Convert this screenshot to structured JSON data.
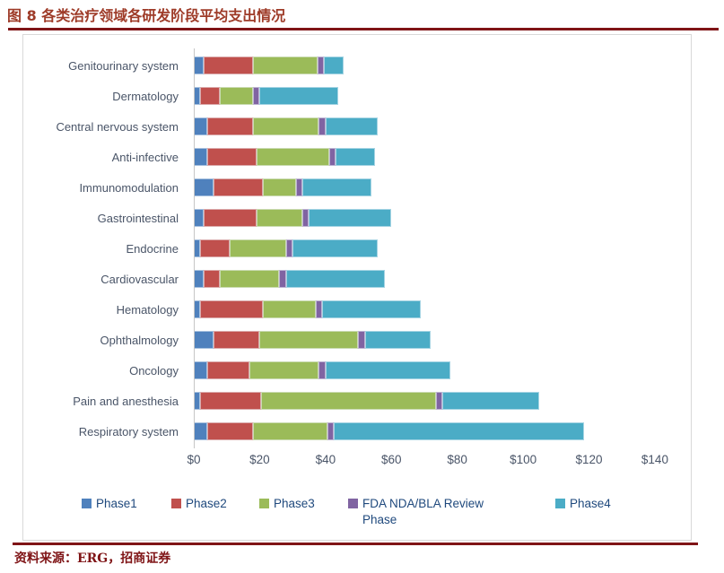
{
  "title": "图 8 各类治疗领域各研发阶段平均支出情况",
  "source": "资料来源：ERG，招商证券",
  "accent_colors": {
    "title_text": "#9e3b28",
    "rule": "#7f1416",
    "panel_border": "#d9d9d9",
    "axis_text": "#4a5568",
    "legend_text": "#1f497d"
  },
  "chart_data": {
    "type": "bar",
    "orientation": "horizontal",
    "stacked": true,
    "unit": "USD millions",
    "grid": false,
    "legend_position": "bottom",
    "xlim": [
      0,
      140
    ],
    "x_ticks": [
      "$0",
      "$20",
      "$40",
      "$60",
      "$80",
      "$100",
      "$120",
      "$140"
    ],
    "categories": [
      "Genitourinary system",
      "Dermatology",
      "Central nervous system",
      "Anti-infective",
      "Immunomodulation",
      "Gastrointestinal",
      "Endocrine",
      "Cardiovascular",
      "Hematology",
      "Ophthalmology",
      "Oncology",
      "Pain and anesthesia",
      "Respiratory system"
    ],
    "series": [
      {
        "name": "Phase1",
        "color": "#4F81BD",
        "values": [
          3,
          2,
          4,
          4,
          6,
          3,
          2,
          3,
          2,
          6,
          4,
          2,
          4
        ]
      },
      {
        "name": "Phase2",
        "color": "#C0504D",
        "values": [
          15,
          6,
          14,
          15,
          15,
          16,
          9,
          5,
          19,
          14,
          13,
          18.5,
          14
        ]
      },
      {
        "name": "Phase3",
        "color": "#9BBB59",
        "values": [
          19.5,
          10,
          20,
          22,
          10,
          14,
          17,
          18,
          16,
          30,
          21,
          53,
          22.5
        ]
      },
      {
        "name": "FDA NDA/BLA Review Phase",
        "color": "#8064A2",
        "values": [
          2,
          2,
          2,
          2,
          2,
          2,
          2,
          2,
          2,
          2,
          2,
          2,
          2
        ]
      },
      {
        "name": "Phase4",
        "color": "#4BACC6",
        "values": [
          6,
          24,
          16,
          12,
          21,
          25,
          26,
          30,
          30,
          20,
          38,
          29.5,
          76
        ]
      }
    ]
  }
}
